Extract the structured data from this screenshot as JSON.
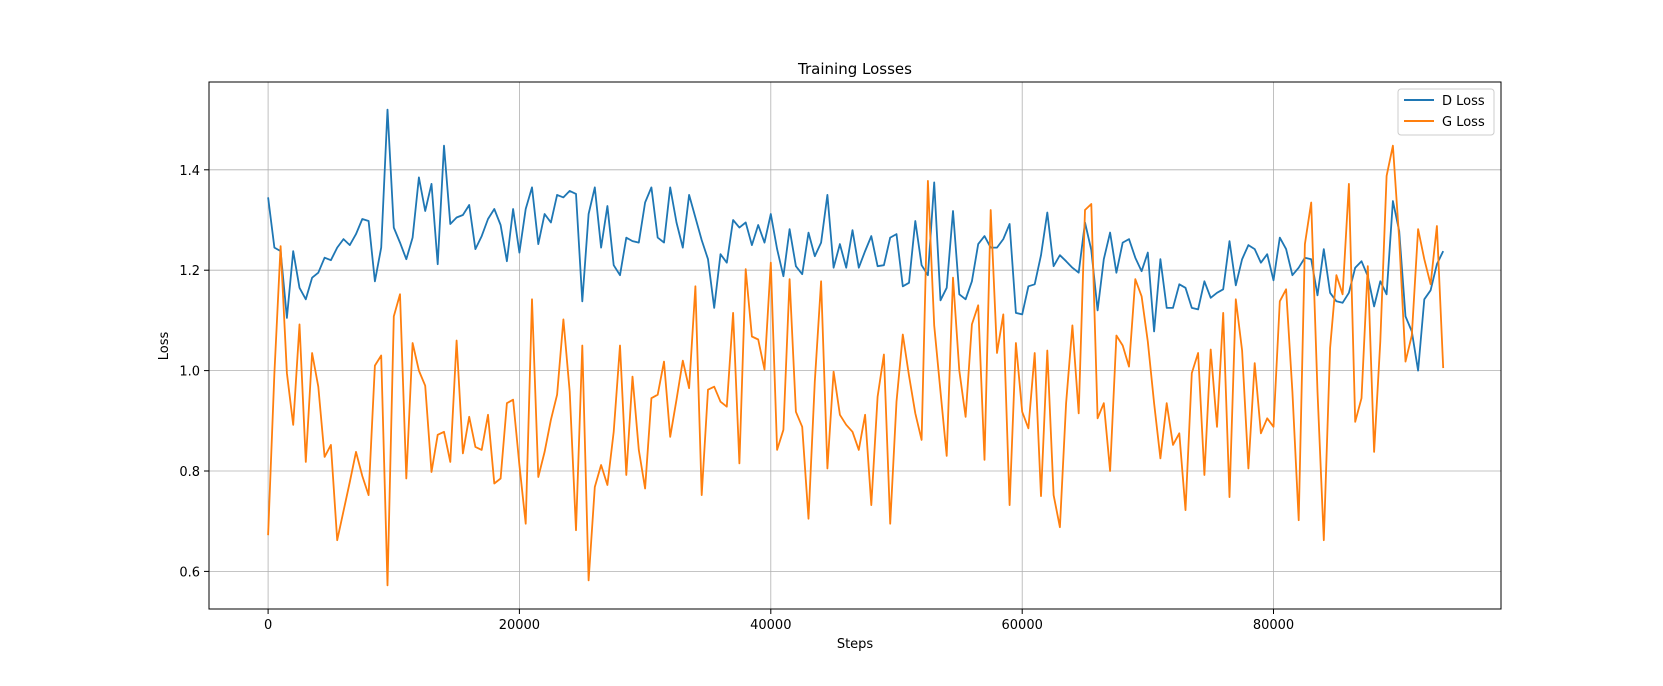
{
  "chart_data": {
    "type": "line",
    "title": "Training Losses",
    "xlabel": "Steps",
    "ylabel": "Loss",
    "xlim": [
      -4700,
      98100
    ],
    "ylim": [
      0.525,
      1.575
    ],
    "xticks": [
      0,
      20000,
      40000,
      60000,
      80000
    ],
    "yticks": [
      0.6,
      0.8,
      1.0,
      1.2,
      1.4
    ],
    "xtick_labels": [
      "0",
      "20000",
      "40000",
      "60000",
      "80000"
    ],
    "ytick_labels": [
      "0.6",
      "0.8",
      "1.0",
      "1.2",
      "1.4"
    ],
    "grid": true,
    "legend_position": "top-right",
    "x_step": 500,
    "series": [
      {
        "name": "D Loss",
        "color": "#1f77b4",
        "values": [
          1.345,
          1.245,
          1.238,
          1.105,
          1.238,
          1.165,
          1.142,
          1.185,
          1.195,
          1.225,
          1.22,
          1.245,
          1.262,
          1.25,
          1.272,
          1.302,
          1.298,
          1.178,
          1.245,
          1.52,
          1.285,
          1.255,
          1.222,
          1.265,
          1.385,
          1.318,
          1.372,
          1.212,
          1.448,
          1.292,
          1.305,
          1.31,
          1.33,
          1.242,
          1.268,
          1.302,
          1.322,
          1.29,
          1.218,
          1.322,
          1.235,
          1.322,
          1.365,
          1.252,
          1.312,
          1.295,
          1.35,
          1.345,
          1.358,
          1.352,
          1.138,
          1.312,
          1.365,
          1.245,
          1.328,
          1.21,
          1.19,
          1.265,
          1.258,
          1.255,
          1.335,
          1.365,
          1.265,
          1.255,
          1.365,
          1.295,
          1.245,
          1.35,
          1.305,
          1.26,
          1.222,
          1.125,
          1.232,
          1.215,
          1.3,
          1.285,
          1.295,
          1.25,
          1.29,
          1.255,
          1.312,
          1.242,
          1.188,
          1.282,
          1.208,
          1.192,
          1.275,
          1.228,
          1.255,
          1.35,
          1.205,
          1.252,
          1.205,
          1.28,
          1.205,
          1.238,
          1.268,
          1.208,
          1.21,
          1.265,
          1.272,
          1.168,
          1.175,
          1.298,
          1.21,
          1.19,
          1.375,
          1.14,
          1.165,
          1.318,
          1.152,
          1.142,
          1.178,
          1.252,
          1.268,
          1.245,
          1.245,
          1.262,
          1.292,
          1.115,
          1.112,
          1.168,
          1.172,
          1.23,
          1.315,
          1.208,
          1.23,
          1.218,
          1.205,
          1.195,
          1.295,
          1.24,
          1.12,
          1.222,
          1.275,
          1.195,
          1.255,
          1.262,
          1.225,
          1.198,
          1.235,
          1.078,
          1.222,
          1.125,
          1.125,
          1.172,
          1.165,
          1.125,
          1.122,
          1.178,
          1.145,
          1.155,
          1.162,
          1.258,
          1.17,
          1.222,
          1.25,
          1.242,
          1.215,
          1.232,
          1.18,
          1.265,
          1.242,
          1.19,
          1.205,
          1.225,
          1.222,
          1.15,
          1.242,
          1.155,
          1.138,
          1.135,
          1.155,
          1.205,
          1.218,
          1.188,
          1.128,
          1.178,
          1.152,
          1.338,
          1.278,
          1.108,
          1.078,
          1.0,
          1.142,
          1.16,
          1.212,
          1.238
        ]
      },
      {
        "name": "G Loss",
        "color": "#ff7f0e",
        "values": [
          0.672,
          0.995,
          1.248,
          0.995,
          0.892,
          1.092,
          0.818,
          1.035,
          0.968,
          0.828,
          0.852,
          0.662,
          0.72,
          0.778,
          0.838,
          0.79,
          0.752,
          1.01,
          1.03,
          0.572,
          1.108,
          1.152,
          0.785,
          1.055,
          1.0,
          0.97,
          0.798,
          0.872,
          0.878,
          0.818,
          1.06,
          0.835,
          0.908,
          0.848,
          0.842,
          0.912,
          0.775,
          0.785,
          0.935,
          0.942,
          0.812,
          0.695,
          1.142,
          0.788,
          0.838,
          0.902,
          0.952,
          1.102,
          0.958,
          0.682,
          1.05,
          0.582,
          0.768,
          0.812,
          0.772,
          0.878,
          1.05,
          0.792,
          0.988,
          0.842,
          0.765,
          0.945,
          0.952,
          1.018,
          0.868,
          0.942,
          1.02,
          0.965,
          1.168,
          0.752,
          0.962,
          0.968,
          0.938,
          0.928,
          1.115,
          0.815,
          1.202,
          1.068,
          1.062,
          1.002,
          1.215,
          0.842,
          0.882,
          1.182,
          0.918,
          0.888,
          0.705,
          0.978,
          1.178,
          0.805,
          0.998,
          0.912,
          0.892,
          0.878,
          0.842,
          0.912,
          0.732,
          0.948,
          1.032,
          0.695,
          0.938,
          1.072,
          0.99,
          0.915,
          0.862,
          1.378,
          1.09,
          0.958,
          0.83,
          1.185,
          1.0,
          0.908,
          1.092,
          1.13,
          0.822,
          1.32,
          1.035,
          1.112,
          0.732,
          1.055,
          0.918,
          0.885,
          1.035,
          0.75,
          1.04,
          0.752,
          0.688,
          0.935,
          1.09,
          0.915,
          1.32,
          1.332,
          0.905,
          0.935,
          0.8,
          1.07,
          1.05,
          1.008,
          1.182,
          1.148,
          1.058,
          0.935,
          0.825,
          0.935,
          0.852,
          0.875,
          0.722,
          0.995,
          1.035,
          0.792,
          1.042,
          0.888,
          1.115,
          0.748,
          1.142,
          1.04,
          0.805,
          1.015,
          0.875,
          0.905,
          0.888,
          1.138,
          1.162,
          0.958,
          0.702,
          1.252,
          1.335,
          0.958,
          0.662,
          1.045,
          1.19,
          1.152,
          1.372,
          0.898,
          0.945,
          1.208,
          0.838,
          1.058,
          1.388,
          1.448,
          1.262,
          1.018,
          1.07,
          1.282,
          1.222,
          1.172,
          1.288,
          1.005
        ]
      }
    ]
  }
}
